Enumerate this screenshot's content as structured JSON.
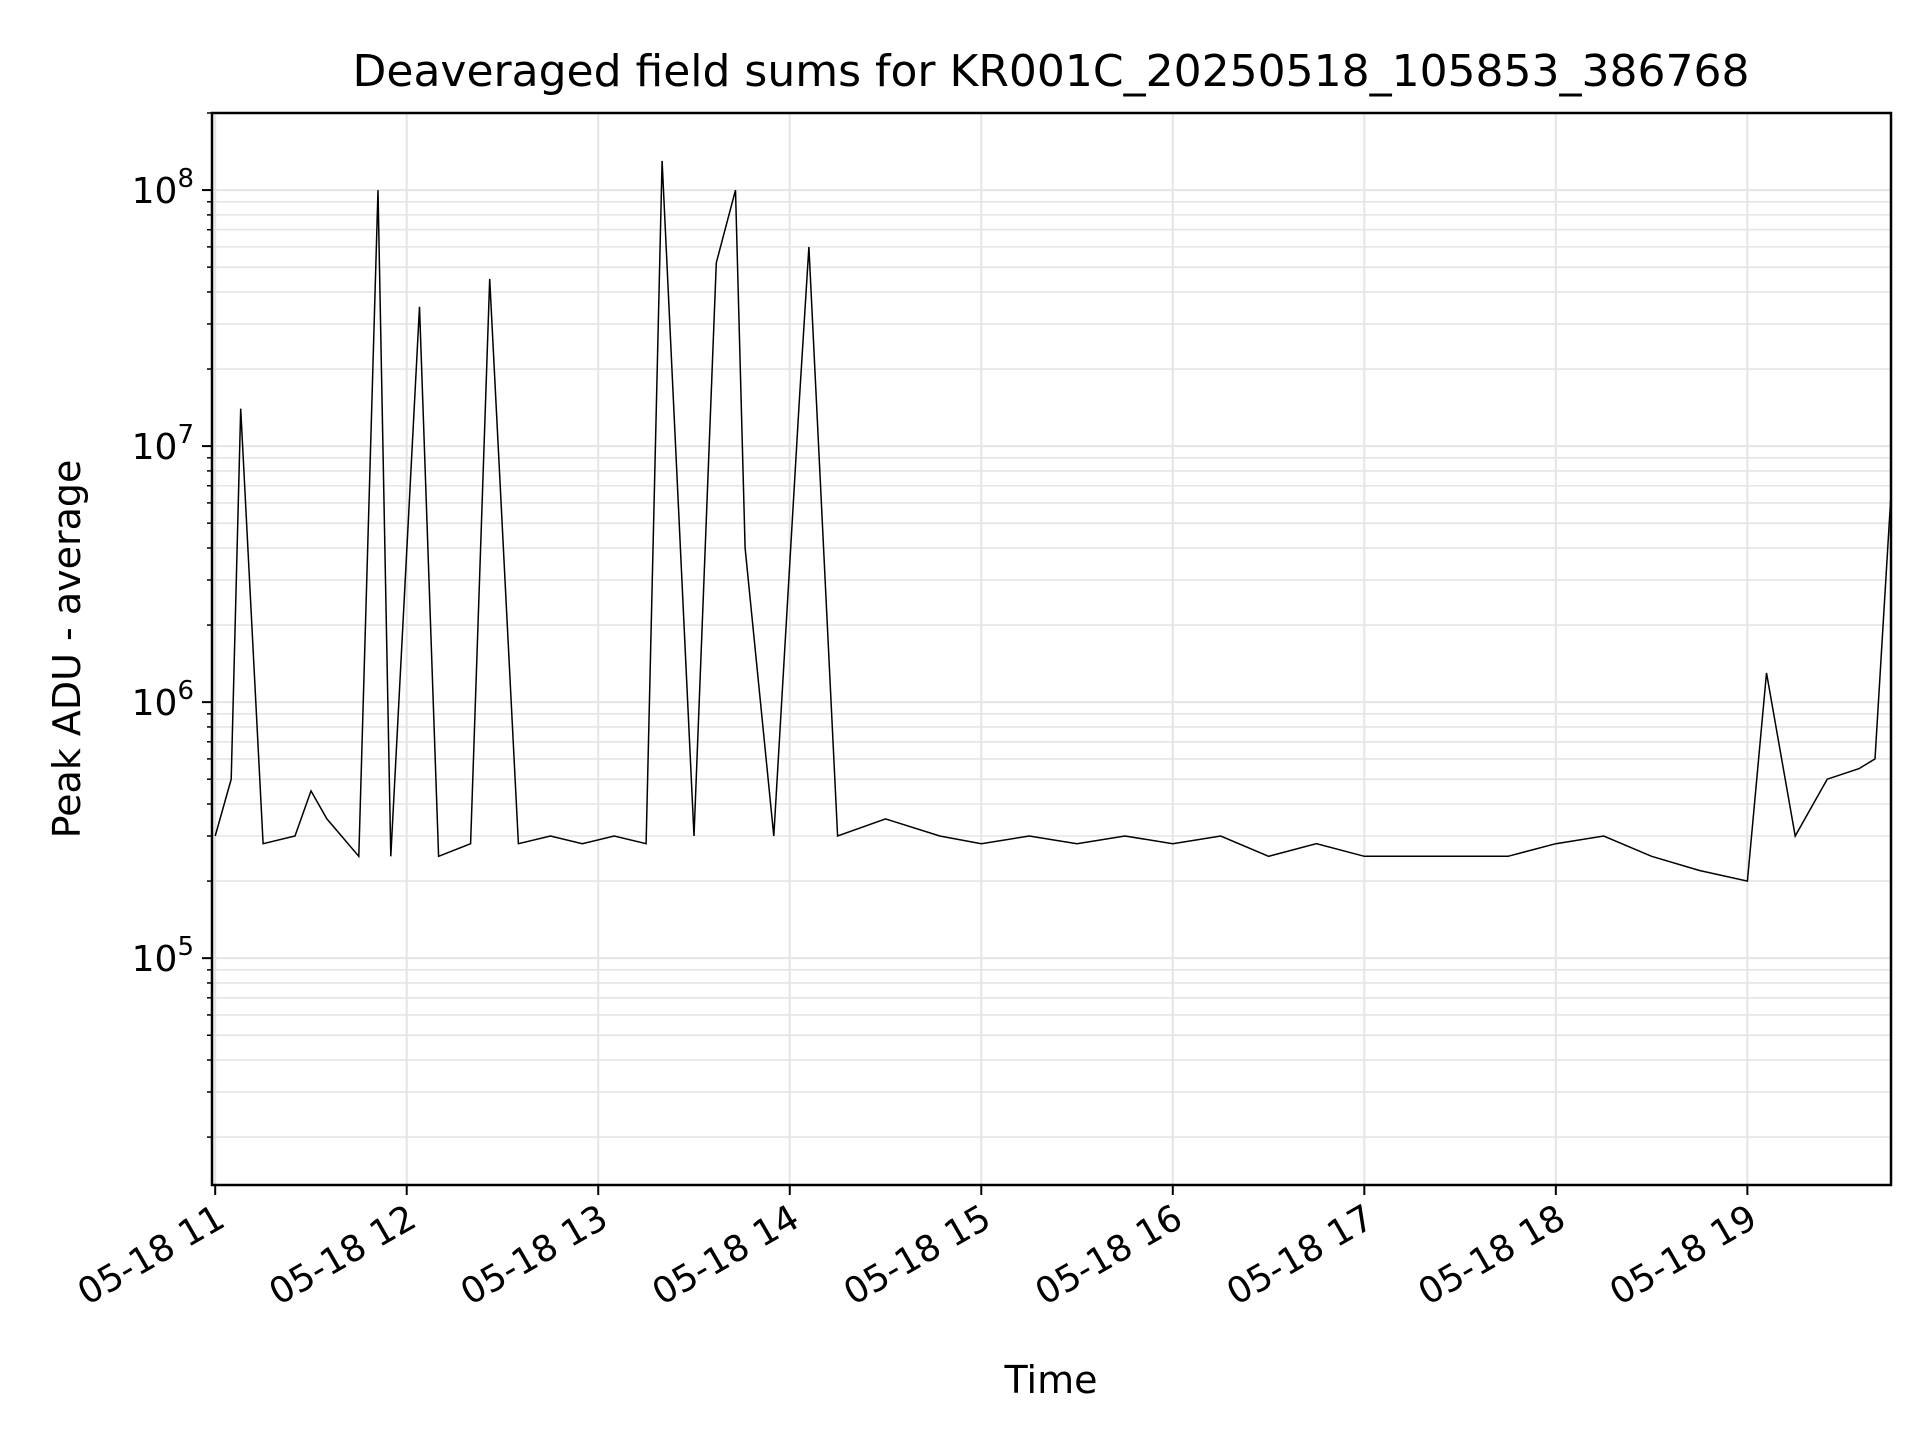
{
  "chart_data": {
    "type": "line",
    "title": "Deaveraged field sums for KR001C_20250518_105853_386768",
    "xlabel": "Time",
    "ylabel": "Peak ADU - average",
    "yscale": "log",
    "ylim": [
      13000,
      200000000
    ],
    "xlim": [
      "2025-05-18 10:59:00",
      "2025-05-18 19:45:00"
    ],
    "grid": true,
    "line_color": "#000000",
    "grid_color": "#e5e5e5",
    "x_ticks": [
      {
        "t": "2025-05-18 11:00",
        "label": "05-18 11"
      },
      {
        "t": "2025-05-18 12:00",
        "label": "05-18 12"
      },
      {
        "t": "2025-05-18 13:00",
        "label": "05-18 13"
      },
      {
        "t": "2025-05-18 14:00",
        "label": "05-18 14"
      },
      {
        "t": "2025-05-18 15:00",
        "label": "05-18 15"
      },
      {
        "t": "2025-05-18 16:00",
        "label": "05-18 16"
      },
      {
        "t": "2025-05-18 17:00",
        "label": "05-18 17"
      },
      {
        "t": "2025-05-18 18:00",
        "label": "05-18 18"
      },
      {
        "t": "2025-05-18 19:00",
        "label": "05-18 19"
      }
    ],
    "y_ticks": [
      {
        "v": 100000,
        "base": "10",
        "exp": "5"
      },
      {
        "v": 1000000,
        "base": "10",
        "exp": "6"
      },
      {
        "v": 10000000,
        "base": "10",
        "exp": "7"
      },
      {
        "v": 100000000,
        "base": "10",
        "exp": "8"
      }
    ],
    "series": [
      {
        "x": [
          "2025-05-18 11:00",
          "2025-05-18 11:05",
          "2025-05-18 11:08",
          "2025-05-18 11:15",
          "2025-05-18 11:25",
          "2025-05-18 11:30",
          "2025-05-18 11:35",
          "2025-05-18 11:45",
          "2025-05-18 11:51",
          "2025-05-18 11:55",
          "2025-05-18 12:04",
          "2025-05-18 12:10",
          "2025-05-18 12:20",
          "2025-05-18 12:26",
          "2025-05-18 12:35",
          "2025-05-18 12:45",
          "2025-05-18 12:55",
          "2025-05-18 13:05",
          "2025-05-18 13:15",
          "2025-05-18 13:20",
          "2025-05-18 13:30",
          "2025-05-18 13:37",
          "2025-05-18 13:43",
          "2025-05-18 13:46",
          "2025-05-18 13:55",
          "2025-05-18 14:03",
          "2025-05-18 14:06",
          "2025-05-18 14:15",
          "2025-05-18 14:30",
          "2025-05-18 14:47",
          "2025-05-18 15:00",
          "2025-05-18 15:15",
          "2025-05-18 15:30",
          "2025-05-18 15:45",
          "2025-05-18 16:00",
          "2025-05-18 16:15",
          "2025-05-18 16:30",
          "2025-05-18 16:45",
          "2025-05-18 17:00",
          "2025-05-18 17:15",
          "2025-05-18 17:30",
          "2025-05-18 17:45",
          "2025-05-18 18:00",
          "2025-05-18 18:15",
          "2025-05-18 18:30",
          "2025-05-18 18:45",
          "2025-05-18 19:00",
          "2025-05-18 19:06",
          "2025-05-18 19:15",
          "2025-05-18 19:25",
          "2025-05-18 19:35",
          "2025-05-18 19:40",
          "2025-05-18 19:45"
        ],
        "y": [
          300000,
          500000,
          14000000,
          280000,
          300000,
          450000,
          350000,
          250000,
          100000000,
          250000,
          35000000,
          250000,
          280000,
          45000000,
          280000,
          300000,
          280000,
          300000,
          280000,
          130000000,
          300000,
          52000000,
          100000000,
          4000000,
          300000,
          15000000,
          60000000,
          300000,
          350000,
          300000,
          280000,
          300000,
          280000,
          300000,
          280000,
          300000,
          250000,
          280000,
          250000,
          250000,
          250000,
          250000,
          280000,
          300000,
          250000,
          220000,
          200000,
          1300000,
          300000,
          500000,
          550000,
          600000,
          6500000
        ]
      }
    ]
  }
}
